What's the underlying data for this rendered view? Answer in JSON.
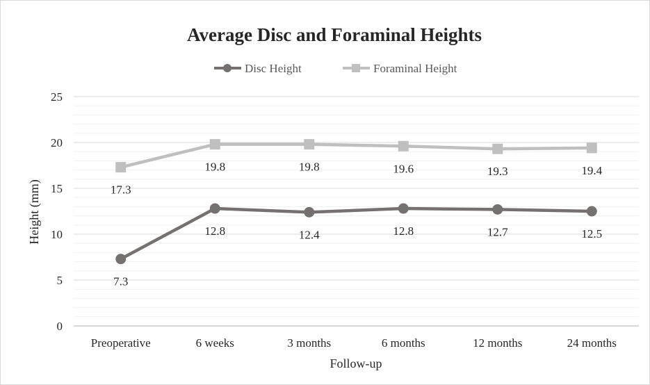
{
  "chart_data": {
    "type": "line",
    "title": "Average Disc and Foraminal Heights",
    "xlabel": "Follow-up",
    "ylabel": "Height (mm)",
    "categories": [
      "Preoperative",
      "6 weeks",
      "3 months",
      "6 months",
      "12 months",
      "24 months"
    ],
    "ylim": [
      0,
      25
    ],
    "yticks": [
      0,
      5,
      10,
      15,
      20,
      25
    ],
    "minor_gridline_step": 1,
    "grid": true,
    "legend_position": "top",
    "series": [
      {
        "name": "Disc Height",
        "values": [
          7.3,
          12.8,
          12.4,
          12.8,
          12.7,
          12.5
        ],
        "labels": [
          "7.3",
          "12.8",
          "12.4",
          "12.8",
          "12.7",
          "12.5"
        ],
        "color": "#767171",
        "marker": "circle"
      },
      {
        "name": "Foraminal Height",
        "values": [
          17.3,
          19.8,
          19.8,
          19.6,
          19.3,
          19.4
        ],
        "labels": [
          "17.3",
          "19.8",
          "19.8",
          "19.6",
          "19.3",
          "19.4"
        ],
        "color": "#bfbfbf",
        "marker": "square"
      }
    ]
  }
}
